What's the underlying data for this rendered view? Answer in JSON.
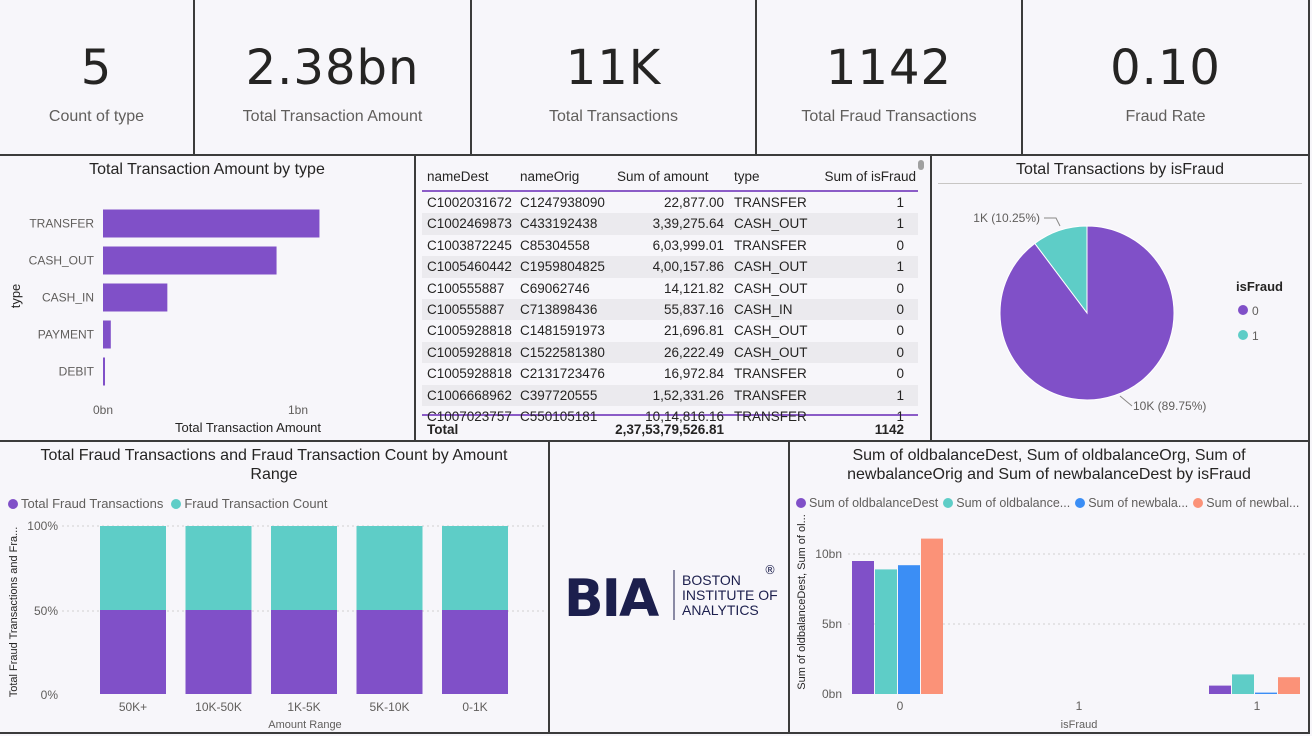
{
  "kpis": [
    {
      "value": "5",
      "label": "Count of type"
    },
    {
      "value": "2.38bn",
      "label": "Total Transaction Amount"
    },
    {
      "value": "11K",
      "label": "Total Transactions"
    },
    {
      "value": "1142",
      "label": "Total Fraud Transactions"
    },
    {
      "value": "0.10",
      "label": "Fraud Rate"
    }
  ],
  "bar_by_type": {
    "title": "Total Transaction Amount by type",
    "xlabel": "Total Transaction Amount",
    "ylabel": "type",
    "ticks": [
      "0bn",
      "1bn"
    ]
  },
  "table": {
    "headers": [
      "nameDest",
      "nameOrig",
      "Sum of amount",
      "type",
      "Sum of isFraud"
    ],
    "rows": [
      [
        "C1002031672",
        "C1247938090",
        "22,877.00",
        "TRANSFER",
        "1"
      ],
      [
        "C1002469873",
        "C433192438",
        "3,39,275.64",
        "CASH_OUT",
        "1"
      ],
      [
        "C1003872245",
        "C85304558",
        "6,03,999.01",
        "TRANSFER",
        "0"
      ],
      [
        "C1005460442",
        "C1959804825",
        "4,00,157.86",
        "CASH_OUT",
        "1"
      ],
      [
        "C100555887",
        "C69062746",
        "14,121.82",
        "CASH_OUT",
        "0"
      ],
      [
        "C100555887",
        "C713898436",
        "55,837.16",
        "CASH_IN",
        "0"
      ],
      [
        "C1005928818",
        "C1481591973",
        "21,696.81",
        "CASH_OUT",
        "0"
      ],
      [
        "C1005928818",
        "C1522581380",
        "26,222.49",
        "CASH_OUT",
        "0"
      ],
      [
        "C1005928818",
        "C2131723476",
        "16,972.84",
        "TRANSFER",
        "0"
      ],
      [
        "C1006668962",
        "C397720555",
        "1,52,331.26",
        "TRANSFER",
        "1"
      ],
      [
        "C1007023757",
        "C550105181",
        "10,14,816.16",
        "TRANSFER",
        "1"
      ]
    ],
    "total": {
      "label": "Total",
      "amount": "2,37,53,79,526.81",
      "fraud": "1142"
    }
  },
  "pie": {
    "title": "Total Transactions by isFraud",
    "legend_title": "isFraud",
    "label_small": "1K (10.25%)",
    "label_big": "10K (89.75%)",
    "legend": [
      "0",
      "1"
    ]
  },
  "stacked": {
    "title": "Total Fraud Transactions and Fraud Transaction Count by Amount Range",
    "legend": [
      "Total Fraud Transactions",
      "Fraud Transaction Count"
    ],
    "ylabel": "Total Fraud Transactions and Fra...",
    "xlabel": "Amount Range",
    "yticks": [
      "100%",
      "50%",
      "0%"
    ]
  },
  "logo": {
    "mark": "BIA",
    "line1": "BOSTON",
    "line2": "INSTITUTE OF",
    "line3": "ANALYTICS",
    "reg": "®"
  },
  "balance": {
    "title": "Sum of oldbalanceDest, Sum of oldbalanceOrg, Sum of newbalanceOrig and Sum of newbalanceDest by isFraud",
    "legend": [
      "Sum of oldbalanceDest",
      "Sum of oldbalance...",
      "Sum of newbala...",
      "Sum of newbal..."
    ],
    "ylabel": "Sum of oldbalanceDest, Sum of ol...",
    "xlabel": "isFraud",
    "yticks": [
      "10bn",
      "5bn",
      "0bn"
    ],
    "xticks": [
      "0",
      "1",
      "1"
    ]
  },
  "colors": {
    "purple": "#8050c8",
    "teal": "#5ecdc7",
    "blue": "#3b8ef5",
    "salmon": "#fb9278"
  },
  "chart_data": [
    {
      "type": "bar",
      "title": "Total Transaction Amount by type",
      "categories": [
        "TRANSFER",
        "CASH_OUT",
        "CASH_IN",
        "PAYMENT",
        "DEBIT"
      ],
      "values": [
        1.11,
        0.89,
        0.33,
        0.04,
        0.005
      ],
      "unit": "bn",
      "xlabel": "Total Transaction Amount",
      "ylabel": "type",
      "xlim": [
        0,
        1.2
      ]
    },
    {
      "type": "pie",
      "title": "Total Transactions by isFraud",
      "categories": [
        "0",
        "1"
      ],
      "values": [
        89.75,
        10.25
      ]
    },
    {
      "type": "bar",
      "stacked": true,
      "title": "Total Fraud Transactions and Fraud Transaction Count by Amount Range",
      "categories": [
        "50K+",
        "10K-50K",
        "1K-5K",
        "5K-10K",
        "0-1K"
      ],
      "series": [
        {
          "name": "Total Fraud Transactions",
          "values": [
            50,
            50,
            50,
            50,
            50
          ]
        },
        {
          "name": "Fraud Transaction Count",
          "values": [
            50,
            50,
            50,
            50,
            50
          ]
        }
      ],
      "ylim": [
        0,
        100
      ],
      "xlabel": "Amount Range"
    },
    {
      "type": "bar",
      "title": "Sum of oldbalanceDest, Sum of oldbalanceOrg, Sum of newbalanceOrig and Sum of newbalanceDest by isFraud",
      "categories": [
        "0",
        "1"
      ],
      "series": [
        {
          "name": "Sum of oldbalanceDest",
          "values": [
            9.5,
            0.6
          ]
        },
        {
          "name": "Sum of oldbalance...",
          "values": [
            8.9,
            1.4
          ]
        },
        {
          "name": "Sum of newbala...",
          "values": [
            9.2,
            0.1
          ]
        },
        {
          "name": "Sum of newbal...",
          "values": [
            11.1,
            1.2
          ]
        }
      ],
      "ylim": [
        0,
        12
      ],
      "unit": "bn",
      "xlabel": "isFraud"
    }
  ]
}
